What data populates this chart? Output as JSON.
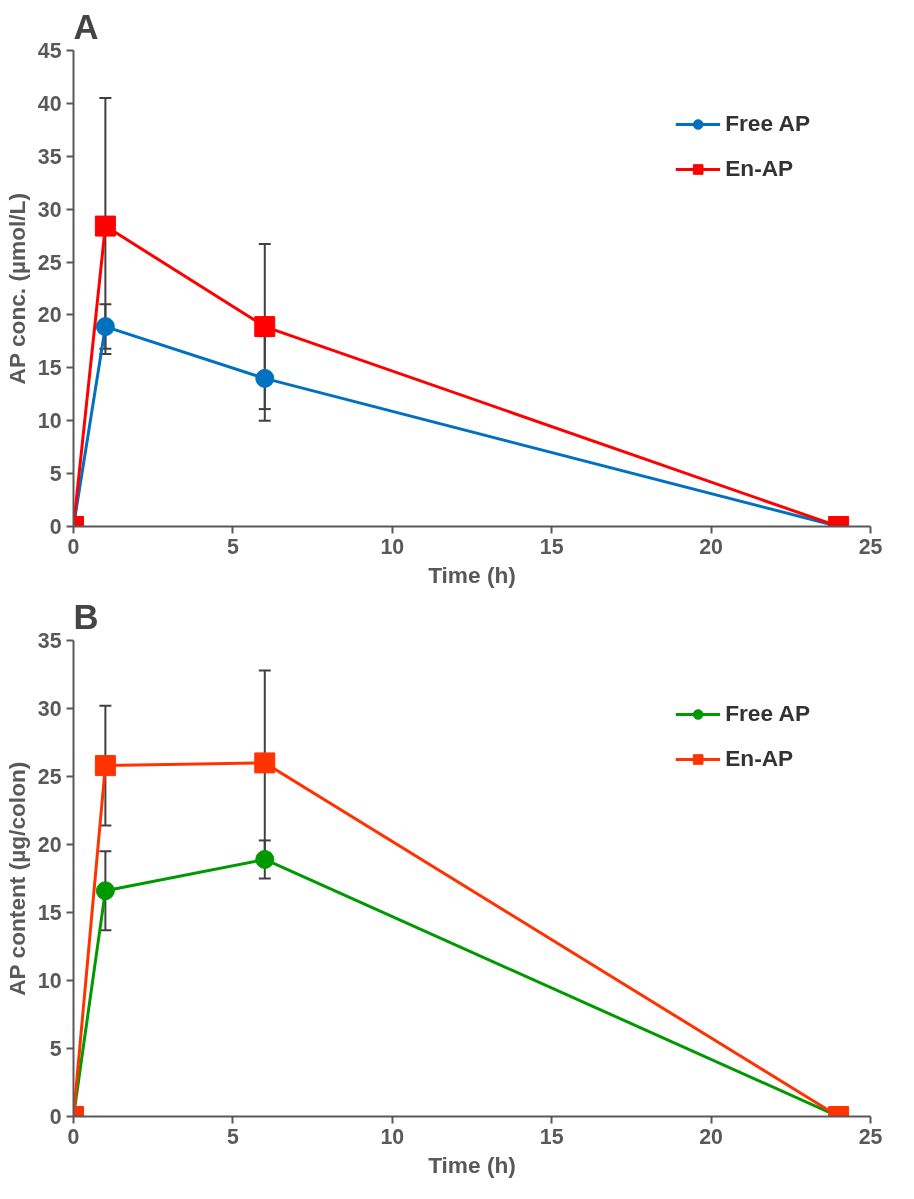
{
  "chart_data": [
    {
      "type": "line",
      "title": "A",
      "xlabel": "Time (h)",
      "ylabel": "AP conc. (µmol/L)",
      "x": [
        0,
        1,
        6,
        24
      ],
      "xlim": [
        0,
        25
      ],
      "xticks": [
        0,
        5,
        10,
        15,
        20,
        25
      ],
      "ylim": [
        0,
        45
      ],
      "yticks": [
        0,
        5,
        10,
        15,
        20,
        25,
        30,
        35,
        40,
        45
      ],
      "grid": false,
      "legend": "top right",
      "series": [
        {
          "name": "Free AP",
          "color": "#0070c0",
          "marker": "circle",
          "values": [
            0,
            18.9,
            14.0,
            0
          ],
          "errors": [
            null,
            2.1,
            4.0,
            null
          ]
        },
        {
          "name": "En-AP",
          "color": "#ff0000",
          "marker": "square",
          "values": [
            0,
            28.4,
            18.9,
            0
          ],
          "errors": [
            null,
            12.1,
            7.8,
            null
          ]
        }
      ]
    },
    {
      "type": "line",
      "title": "B",
      "xlabel": "Time (h)",
      "ylabel": "AP content (µg/colon)",
      "x": [
        0,
        1,
        6,
        24
      ],
      "xlim": [
        0,
        25
      ],
      "xticks": [
        0,
        5,
        10,
        15,
        20,
        25
      ],
      "ylim": [
        0,
        35
      ],
      "yticks": [
        0,
        5,
        10,
        15,
        20,
        25,
        30,
        35
      ],
      "grid": false,
      "legend": "top right",
      "series": [
        {
          "name": "Free AP",
          "color": "#009900",
          "marker": "circle",
          "values": [
            0,
            16.6,
            18.9,
            0
          ],
          "errors": [
            null,
            2.9,
            1.4,
            null
          ]
        },
        {
          "name": "En-AP",
          "color": "#ff3300",
          "marker": "square",
          "values": [
            0,
            25.8,
            26.0,
            0
          ],
          "errors": [
            null,
            4.4,
            6.8,
            null
          ]
        }
      ]
    }
  ]
}
